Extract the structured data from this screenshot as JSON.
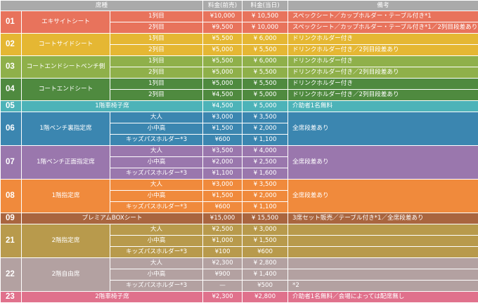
{
  "headers": {
    "seat": "席種",
    "price_advance": "料金(前売)",
    "price_day": "料金(当日)",
    "notes": "備考"
  },
  "groups": [
    {
      "num": "01",
      "color": "#e8735c",
      "name": "エキサイトシート",
      "rows": [
        {
          "sub": "1列目",
          "adv": "¥10,000",
          "day": "¥ 10,500",
          "note": "スペックシート／カップホルダー・テーブル付き*1"
        },
        {
          "sub": "2列目",
          "adv": "¥9,500",
          "day": "¥ 10,000",
          "note": "スペックシート／カップホルダー・テーブル付き*1／2列目段差あり"
        }
      ]
    },
    {
      "num": "02",
      "color": "#e5b733",
      "name": "コートサイドシート",
      "rows": [
        {
          "sub": "1列目",
          "adv": "¥5,500",
          "day": "¥ 6,000",
          "note": "ドリンクホルダー付き"
        },
        {
          "sub": "2列目",
          "adv": "¥5,000",
          "day": "¥ 5,500",
          "note": "ドリンクホルダー付き／2列目段差あり"
        }
      ]
    },
    {
      "num": "03",
      "color": "#8fb04a",
      "name": "コートエンドシートベンチ側",
      "rows": [
        {
          "sub": "1列目",
          "adv": "¥5,500",
          "day": "¥ 6,000",
          "note": "ドリンクホルダー付き"
        },
        {
          "sub": "2列目",
          "adv": "¥5,000",
          "day": "¥ 5,500",
          "note": "ドリンクホルダー付き／2列目段差あり"
        }
      ]
    },
    {
      "num": "04",
      "color": "#4f8a3f",
      "name": "コートエンドシート",
      "rows": [
        {
          "sub": "1列目",
          "adv": "¥5,000",
          "day": "¥ 5,500",
          "note": "ドリンクホルダー付き"
        },
        {
          "sub": "2列目",
          "adv": "¥4,500",
          "day": "¥ 5,000",
          "note": "ドリンクホルダー付き／2列目段差あり"
        }
      ]
    },
    {
      "num": "05",
      "color": "#4db3b8",
      "name": "1階車椅子席",
      "rows": [
        {
          "sub": "",
          "adv": "¥4,500",
          "day": "¥ 5,000",
          "note": "介助者1名無料"
        }
      ]
    },
    {
      "num": "06",
      "color": "#3b86b0",
      "name": "1階ベンチ裏指定席",
      "rows": [
        {
          "sub": "大人",
          "adv": "¥3,000",
          "day": "¥ 3,500",
          "note": "全席段差あり"
        },
        {
          "sub": "小中高",
          "adv": "¥1,500",
          "day": "¥ 2,000",
          "note": ""
        },
        {
          "sub": "キッズパスホルダー*3",
          "adv": "¥600",
          "day": "¥ 1,100",
          "note": ""
        }
      ]
    },
    {
      "num": "07",
      "color": "#9a77ad",
      "name": "1階ベンチ正面指定席",
      "rows": [
        {
          "sub": "大人",
          "adv": "¥3,500",
          "day": "¥ 4,000",
          "note": "全席段差あり"
        },
        {
          "sub": "小中高",
          "adv": "¥2,000",
          "day": "¥ 2,500",
          "note": ""
        },
        {
          "sub": "キッズパスホルダー*3",
          "adv": "¥1,100",
          "day": "¥ 1,600",
          "note": ""
        }
      ]
    },
    {
      "num": "08",
      "color": "#f08a3c",
      "name": "1階指定席",
      "rows": [
        {
          "sub": "大人",
          "adv": "¥3,000",
          "day": "¥ 3,500",
          "note": "全席段差あり"
        },
        {
          "sub": "小中高",
          "adv": "¥1,500",
          "day": "¥ 2,000",
          "note": ""
        },
        {
          "sub": "キッズパスホルダー*3",
          "adv": "¥600",
          "day": "¥ 1,100",
          "note": ""
        }
      ]
    },
    {
      "num": "09",
      "color": "#a9653f",
      "name": "プレミアムBOXシート",
      "rows": [
        {
          "sub": "",
          "adv": "¥15,000",
          "day": "¥ 15,500",
          "note": "3席セット販売／テーブル付き*1／全席段差あり"
        }
      ]
    },
    {
      "num": "21",
      "color": "#b89a4c",
      "name": "2階指定席",
      "rows": [
        {
          "sub": "大人",
          "adv": "¥2,500",
          "day": "¥ 3,000",
          "note": ""
        },
        {
          "sub": "小中高",
          "adv": "¥1,000",
          "day": "¥ 1,500",
          "note": ""
        },
        {
          "sub": "キッズパスホルダー*3",
          "adv": "¥100",
          "day": "¥600",
          "note": ""
        }
      ]
    },
    {
      "num": "22",
      "color": "#b3a1a1",
      "name": "2階自由席",
      "rows": [
        {
          "sub": "大人",
          "adv": "¥2,300",
          "day": "¥ 2,800",
          "note": ""
        },
        {
          "sub": "小中高",
          "adv": "¥900",
          "day": "¥ 1,400",
          "note": ""
        },
        {
          "sub": "キッズパスホルダー*3",
          "adv": "—",
          "day": "¥500",
          "note": "*2"
        }
      ]
    },
    {
      "num": "23",
      "color": "#e0718c",
      "name": "2階車椅子席",
      "rows": [
        {
          "sub": "",
          "adv": "¥2,300",
          "day": "¥2,800",
          "note": "介助者1名無料／会場によっては配席無し"
        }
      ]
    }
  ]
}
